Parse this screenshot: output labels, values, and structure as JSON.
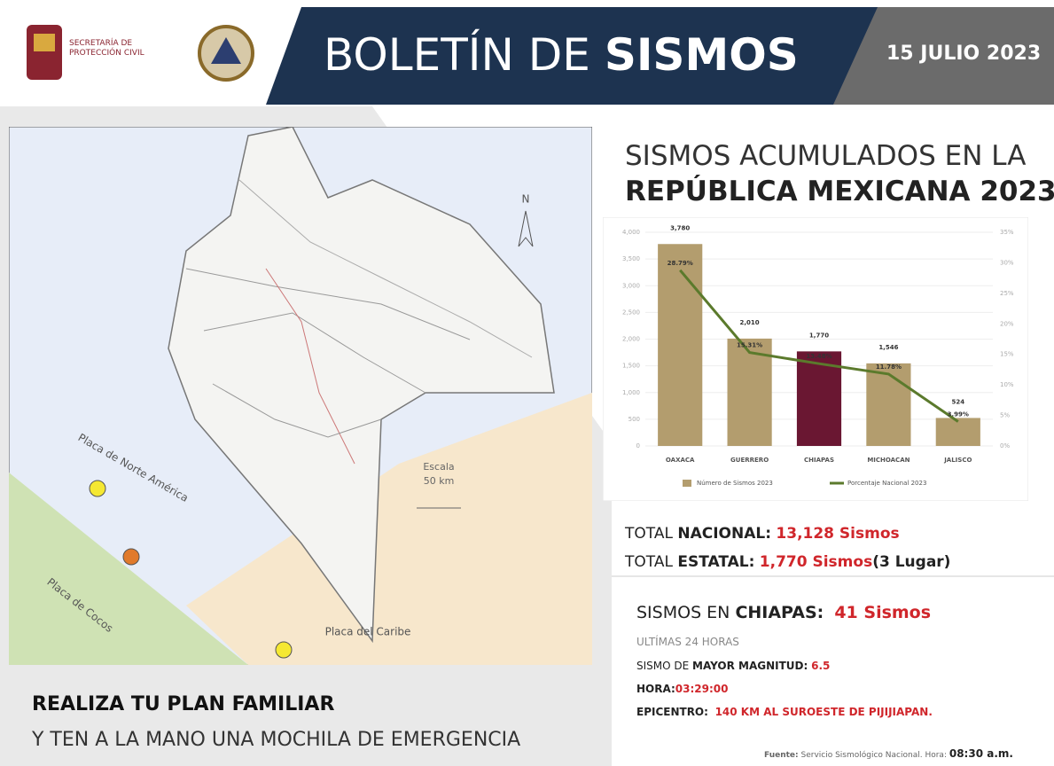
{
  "header": {
    "agency": "SECRETARÍA DE PROTECCIÓN CIVIL",
    "title_light": "BOLETÍN DE",
    "title_bold": "SISMOS",
    "date": "15 JULIO 2023"
  },
  "map": {
    "north": "N",
    "scale_title": "Escala",
    "scale_value": "50 km",
    "plate_north_america": "Placa de Norte América",
    "plate_cocos": "Placa de Cocos",
    "plate_caribbean": "Placa del Caribe"
  },
  "chart_heading": {
    "line1": "SISMOS ACUMULADOS EN LA",
    "line2": "REPÚBLICA MEXICANA 2023"
  },
  "chart_data": {
    "type": "bar",
    "categories": [
      "OAXACA",
      "GUERRERO",
      "CHIAPAS",
      "MICHOACAN",
      "JALISCO"
    ],
    "series": [
      {
        "name": "Número de Sismos 2023",
        "type": "bar",
        "colors": [
          "#b39d6e",
          "#b39d6e",
          "#6a1732",
          "#b39d6e",
          "#b39d6e"
        ],
        "values": [
          3780,
          2010,
          1770,
          1546,
          524
        ],
        "value_labels": [
          "3,780",
          "2,010",
          "1,770",
          "1,546",
          "524"
        ]
      },
      {
        "name": "Porcentaje Nacional 2023",
        "type": "line",
        "color": "#5b7a2c",
        "axis": "y2",
        "values": [
          28.79,
          15.31,
          13.48,
          11.78,
          3.99
        ],
        "value_labels": [
          "28.79%",
          "15.31%",
          "13.48%",
          "11.78%",
          "3.99%"
        ]
      }
    ],
    "ylim": [
      0,
      4000
    ],
    "yticks": [
      0,
      500,
      {
        "value": 1000,
        "label": "1,000"
      },
      {
        "value": 1500,
        "label": "1,500"
      },
      {
        "value": 2000,
        "label": "2,000"
      },
      {
        "value": 2500,
        "label": "2,500"
      },
      {
        "value": 3000,
        "label": "3,000"
      },
      {
        "value": 3500,
        "label": "3,500"
      },
      {
        "value": 4000,
        "label": "4,000"
      }
    ],
    "y2lim": [
      0,
      35
    ],
    "y2ticks": [
      {
        "value": 0,
        "label": "0%"
      },
      {
        "value": 5,
        "label": "5%"
      },
      {
        "value": 10,
        "label": "10%"
      },
      {
        "value": 15,
        "label": "15%"
      },
      {
        "value": 20,
        "label": "20%"
      },
      {
        "value": 25,
        "label": "25%"
      },
      {
        "value": 30,
        "label": "30%"
      },
      {
        "value": 35,
        "label": "35%"
      }
    ],
    "legend": "bottom"
  },
  "totals": {
    "national_prefix": "TOTAL",
    "national_label": "NACIONAL:",
    "national_value": "13,128 Sismos",
    "state_prefix": "TOTAL",
    "state_label": "ESTATAL:",
    "state_value": "1,770 Sismos",
    "state_rank": "(3 Lugar)"
  },
  "chiapas": {
    "prefix": "SISMOS EN",
    "state": "CHIAPAS:",
    "count": "41 Sismos",
    "period": "ULTÍMAS 24 HORAS",
    "magnitude_prefix": "SISMO DE",
    "magnitude_label": "MAYOR MAGNITUD:",
    "magnitude_value": "6.5",
    "time_label": "HORA:",
    "time_value": "03:29:00",
    "epicenter_label": "EPICENTRO:",
    "epicenter_value": "140 KM AL SUROESTE DE PIJIJIAPAN."
  },
  "campaign": {
    "line1": "REALIZA TU PLAN FAMILIAR",
    "line2": "Y TEN A LA MANO UNA MOCHILA DE EMERGENCIA"
  },
  "footer": {
    "source_label": "Fuente:",
    "source_text": "Servicio Sismológico Nacional. Hora:",
    "time": "08:30 a.m."
  }
}
